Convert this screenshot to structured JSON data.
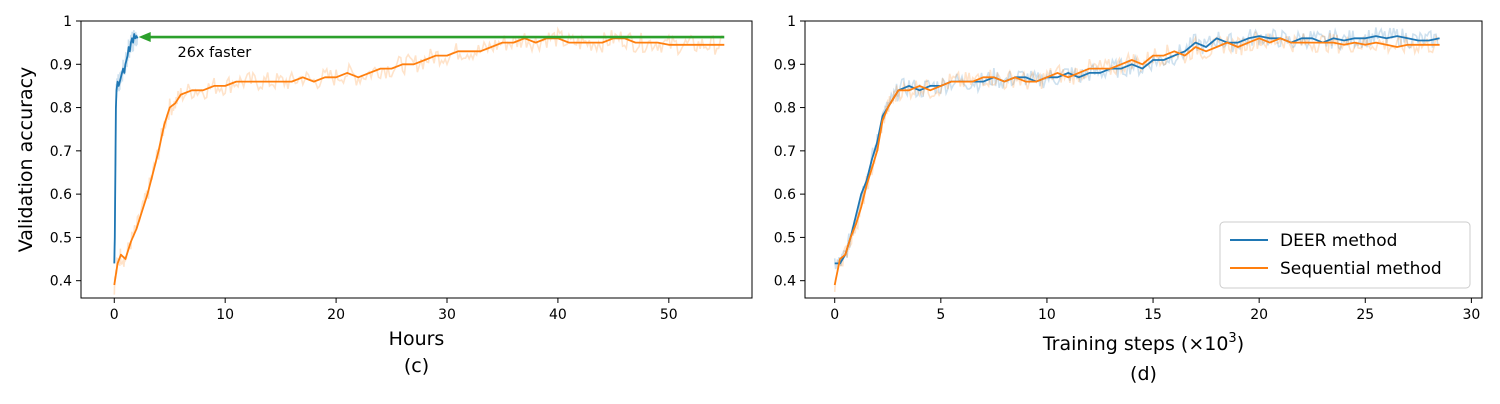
{
  "chart_data": [
    {
      "type": "line",
      "panel": "(c)",
      "xlabel": "Hours",
      "ylabel": "Validation accuracy",
      "xlim": [
        -3,
        57.5
      ],
      "ylim": [
        0.36,
        1.0
      ],
      "xticks": [
        0,
        10,
        20,
        30,
        40,
        50
      ],
      "yticks": [
        0.4,
        0.5,
        0.6,
        0.7,
        0.8,
        0.9,
        1.0
      ],
      "grid": false,
      "annotation": {
        "text": "26x faster",
        "from_x": 55,
        "to_x": 2.2,
        "y": 0.963,
        "text_x": 5.7,
        "text_y": 0.928,
        "color": "#2ca02c"
      },
      "series": [
        {
          "name": "DEER method",
          "color": "#1f77b4",
          "x": [
            0,
            0.05,
            0.1,
            0.15,
            0.2,
            0.3,
            0.4,
            0.5,
            0.6,
            0.7,
            0.8,
            0.9,
            1.0,
            1.1,
            1.2,
            1.3,
            1.4,
            1.5,
            1.6,
            1.7,
            1.8,
            1.9,
            2.0,
            2.1
          ],
          "y": [
            0.44,
            0.5,
            0.66,
            0.8,
            0.84,
            0.86,
            0.85,
            0.86,
            0.87,
            0.88,
            0.89,
            0.88,
            0.9,
            0.91,
            0.92,
            0.94,
            0.93,
            0.95,
            0.96,
            0.95,
            0.97,
            0.96,
            0.965,
            0.96
          ]
        },
        {
          "name": "Sequential method",
          "color": "#ff7f0e",
          "x": [
            0,
            0.3,
            0.6,
            1,
            1.5,
            2,
            2.5,
            3,
            3.5,
            4,
            4.5,
            5,
            5.5,
            6,
            7,
            8,
            9,
            10,
            11,
            12,
            13,
            14,
            15,
            16,
            17,
            18,
            19,
            20,
            21,
            22,
            23,
            24,
            25,
            26,
            27,
            28,
            29,
            30,
            31,
            32,
            33,
            34,
            35,
            36,
            37,
            38,
            39,
            40,
            41,
            42,
            43,
            44,
            45,
            46,
            47,
            48,
            49,
            50,
            51,
            52,
            53,
            54,
            55
          ],
          "y": [
            0.39,
            0.44,
            0.46,
            0.45,
            0.49,
            0.52,
            0.56,
            0.6,
            0.65,
            0.7,
            0.76,
            0.8,
            0.81,
            0.83,
            0.84,
            0.84,
            0.85,
            0.85,
            0.86,
            0.86,
            0.86,
            0.86,
            0.86,
            0.86,
            0.87,
            0.86,
            0.87,
            0.87,
            0.88,
            0.87,
            0.88,
            0.89,
            0.89,
            0.9,
            0.9,
            0.91,
            0.92,
            0.92,
            0.93,
            0.93,
            0.93,
            0.94,
            0.95,
            0.95,
            0.96,
            0.95,
            0.96,
            0.96,
            0.95,
            0.95,
            0.95,
            0.95,
            0.96,
            0.96,
            0.95,
            0.95,
            0.95,
            0.945,
            0.945,
            0.945,
            0.945,
            0.945,
            0.945
          ]
        }
      ]
    },
    {
      "type": "line",
      "panel": "(d)",
      "xlabel": "Training steps (×10",
      "xlabel_sup": "3",
      "xlabel_close": ")",
      "ylabel": "",
      "xlim": [
        -1.4,
        30.5
      ],
      "ylim": [
        0.36,
        1.0
      ],
      "xticks": [
        0,
        5,
        10,
        15,
        20,
        25,
        30
      ],
      "yticks": [
        0.4,
        0.5,
        0.6,
        0.7,
        0.8,
        0.9,
        1.0
      ],
      "grid": false,
      "legend": {
        "placement": "lower-right",
        "entries": [
          "DEER method",
          "Sequential method"
        ]
      },
      "series": [
        {
          "name": "DEER method",
          "color": "#1f77b4",
          "x": [
            0,
            0.25,
            0.5,
            0.75,
            1,
            1.25,
            1.5,
            1.75,
            2,
            2.25,
            2.5,
            2.75,
            3,
            3.5,
            4,
            4.5,
            5,
            5.5,
            6,
            6.5,
            7,
            7.5,
            8,
            8.5,
            9,
            9.5,
            10,
            10.5,
            11,
            11.5,
            12,
            12.5,
            13,
            13.5,
            14,
            14.5,
            15,
            15.5,
            16,
            16.5,
            17,
            17.5,
            18,
            18.5,
            19,
            19.5,
            20,
            20.5,
            21,
            21.5,
            22,
            22.5,
            23,
            23.5,
            24,
            24.5,
            25,
            25.5,
            26,
            26.5,
            27,
            27.5,
            28,
            28.5
          ],
          "y": [
            0.44,
            0.44,
            0.46,
            0.5,
            0.55,
            0.6,
            0.63,
            0.68,
            0.72,
            0.78,
            0.8,
            0.82,
            0.84,
            0.85,
            0.84,
            0.85,
            0.85,
            0.86,
            0.86,
            0.86,
            0.86,
            0.87,
            0.86,
            0.87,
            0.87,
            0.86,
            0.87,
            0.87,
            0.88,
            0.87,
            0.88,
            0.88,
            0.89,
            0.89,
            0.9,
            0.89,
            0.91,
            0.91,
            0.92,
            0.93,
            0.95,
            0.94,
            0.96,
            0.95,
            0.95,
            0.96,
            0.965,
            0.96,
            0.96,
            0.95,
            0.96,
            0.96,
            0.95,
            0.96,
            0.955,
            0.96,
            0.96,
            0.965,
            0.96,
            0.965,
            0.96,
            0.955,
            0.955,
            0.96
          ]
        },
        {
          "name": "Sequential method",
          "color": "#ff7f0e",
          "x": [
            0,
            0.25,
            0.5,
            0.75,
            1,
            1.25,
            1.5,
            1.75,
            2,
            2.25,
            2.5,
            2.75,
            3,
            3.5,
            4,
            4.5,
            5,
            5.5,
            6,
            6.5,
            7,
            7.5,
            8,
            8.5,
            9,
            9.5,
            10,
            10.5,
            11,
            11.5,
            12,
            12.5,
            13,
            13.5,
            14,
            14.5,
            15,
            15.5,
            16,
            16.5,
            17,
            17.5,
            18,
            18.5,
            19,
            19.5,
            20,
            20.5,
            21,
            21.5,
            22,
            22.5,
            23,
            23.5,
            24,
            24.5,
            25,
            25.5,
            26,
            26.5,
            27,
            27.5,
            28,
            28.5
          ],
          "y": [
            0.39,
            0.45,
            0.46,
            0.5,
            0.53,
            0.57,
            0.62,
            0.66,
            0.7,
            0.77,
            0.8,
            0.82,
            0.84,
            0.84,
            0.85,
            0.84,
            0.85,
            0.86,
            0.86,
            0.86,
            0.87,
            0.87,
            0.86,
            0.87,
            0.86,
            0.86,
            0.87,
            0.88,
            0.87,
            0.88,
            0.89,
            0.89,
            0.89,
            0.9,
            0.91,
            0.9,
            0.92,
            0.92,
            0.93,
            0.92,
            0.94,
            0.93,
            0.94,
            0.95,
            0.94,
            0.95,
            0.96,
            0.95,
            0.96,
            0.95,
            0.95,
            0.95,
            0.95,
            0.95,
            0.945,
            0.95,
            0.945,
            0.95,
            0.945,
            0.94,
            0.945,
            0.945,
            0.945,
            0.945
          ]
        }
      ]
    }
  ]
}
